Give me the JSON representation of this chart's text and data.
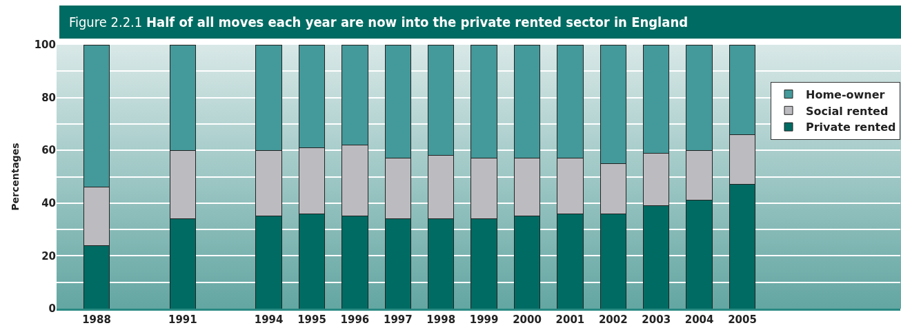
{
  "chart_data": {
    "type": "bar",
    "title": "Figure 2.2.1 Half of all moves each year are now into the private rented sector in England",
    "ylabel": "Percentages",
    "categories": [
      "1988",
      null,
      "1991",
      null,
      "1994",
      "1995",
      "1996",
      "1997",
      "1998",
      "1999",
      "2000",
      "2001",
      "2002",
      "2003",
      "2004",
      "2005"
    ],
    "stacked": true,
    "series": [
      {
        "name": "Private rented",
        "color": "#006b63",
        "values": [
          24,
          null,
          34,
          null,
          35,
          36,
          35,
          34,
          34,
          34,
          35,
          36,
          36,
          39,
          41,
          47
        ]
      },
      {
        "name": "Social rented",
        "color": "#bcbcc0",
        "values": [
          22,
          null,
          26,
          null,
          25,
          25,
          27,
          23,
          24,
          23,
          22,
          21,
          19,
          20,
          19,
          19
        ]
      },
      {
        "name": "Home-owner",
        "color": "#44999a",
        "values": [
          54,
          null,
          40,
          null,
          40,
          39,
          38,
          43,
          42,
          43,
          43,
          43,
          45,
          41,
          40,
          34
        ]
      }
    ],
    "ylim": [
      0,
      100
    ],
    "yticks": [
      0,
      {
        "value": 10,
        "label": null
      },
      20,
      {
        "value": 30,
        "label": null
      },
      40,
      {
        "value": 50,
        "label": null
      },
      60,
      {
        "value": 70,
        "label": null
      },
      80,
      {
        "value": 90,
        "label": null
      },
      100
    ],
    "grid": "y",
    "legend": "top right"
  }
}
